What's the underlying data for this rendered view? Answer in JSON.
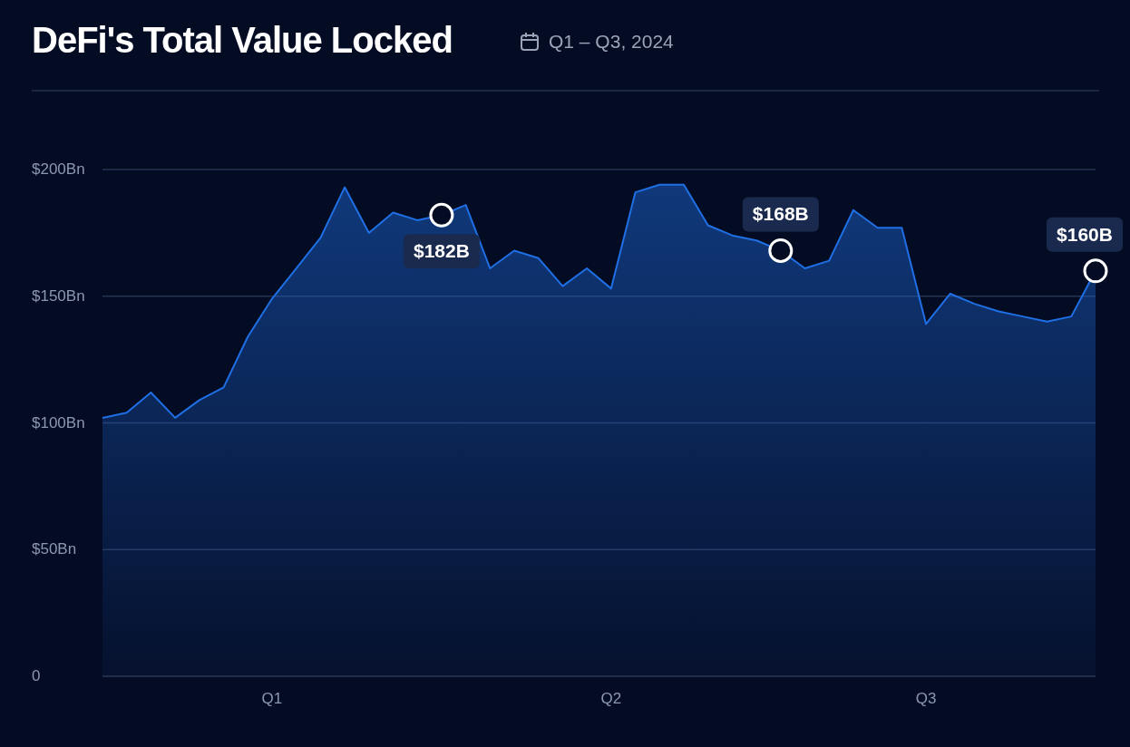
{
  "chart_data": {
    "type": "area",
    "title": "DeFi's Total Value Locked",
    "subtitle": "Q1 – Q3, 2024",
    "categories": [
      null,
      null,
      null,
      null,
      null,
      null,
      null,
      "Q1",
      null,
      null,
      null,
      null,
      null,
      null,
      null,
      null,
      null,
      null,
      null,
      null,
      null,
      "Q2",
      null,
      null,
      null,
      null,
      null,
      null,
      null,
      null,
      null,
      null,
      null,
      null,
      "Q3",
      null,
      null,
      null,
      null,
      null,
      null,
      null
    ],
    "series": [
      {
        "color": "#1f6fe5",
        "values": [
          102,
          104,
          112,
          102,
          109,
          114,
          134,
          149,
          161,
          173,
          193,
          175,
          183,
          180,
          182,
          186,
          161,
          168,
          165,
          154,
          161,
          153,
          191,
          194,
          194,
          178,
          174,
          172,
          168,
          161,
          164,
          184,
          177,
          177,
          139,
          151,
          147,
          144,
          142,
          140,
          142,
          160
        ],
        "value_labels": [
          null,
          null,
          null,
          null,
          null,
          null,
          null,
          null,
          null,
          null,
          null,
          null,
          null,
          null,
          "$182B",
          null,
          null,
          null,
          null,
          null,
          null,
          null,
          null,
          null,
          null,
          null,
          null,
          null,
          "$168B",
          null,
          null,
          null,
          null,
          null,
          null,
          null,
          null,
          null,
          null,
          null,
          null,
          "$160B"
        ]
      }
    ],
    "ylim": [
      0,
      200
    ],
    "yticks": [
      {
        "value": 0,
        "label": "0"
      },
      {
        "value": 50,
        "label": "$50Bn"
      },
      {
        "value": 100,
        "label": "$100Bn"
      },
      {
        "value": 150,
        "label": "$150Bn"
      },
      {
        "value": 200,
        "label": "$200Bn"
      }
    ],
    "grid": "y",
    "legend": false
  }
}
